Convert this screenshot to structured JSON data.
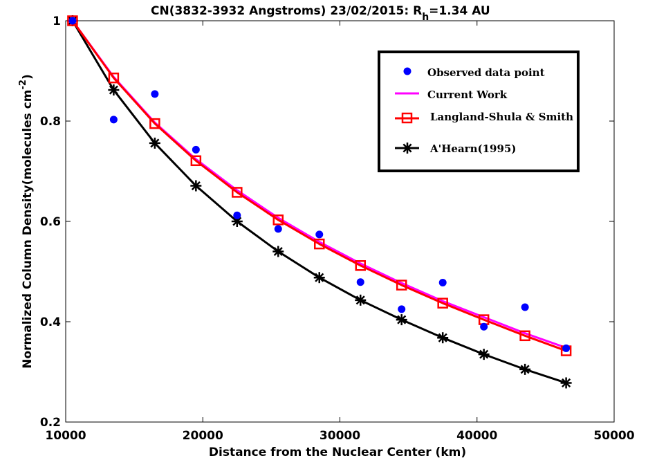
{
  "chart_data": {
    "type": "line",
    "title_main": "CN(3832-3932 Angstroms) 23/02/2015: R",
    "title_sub": "h",
    "title_tail": "=1.34 AU",
    "xlabel": "Distance from the Nuclear Center (km)",
    "ylabel_main": "Normalized Column Density(molecules cm",
    "ylabel_sup": "-2",
    "ylabel_tail": ")",
    "xlim": [
      10000,
      50000
    ],
    "ylim": [
      0.2,
      1.0
    ],
    "xticks": [
      10000,
      20000,
      30000,
      40000,
      50000
    ],
    "yticks": [
      0.2,
      0.4,
      0.6,
      0.8,
      1.0
    ],
    "xtick_labels": [
      "10000",
      "20000",
      "30000",
      "40000",
      "50000"
    ],
    "ytick_labels": [
      "0.2",
      "0.4",
      "0.6",
      "0.8",
      "1"
    ],
    "legend_position": "top-right",
    "series": [
      {
        "name": "Observed data point",
        "style": "marker-circle",
        "color": "#0000ff",
        "x": [
          10500,
          13500,
          16500,
          19500,
          22500,
          25500,
          28500,
          31500,
          34500,
          37500,
          40500,
          43500,
          46500
        ],
        "y": [
          1.0,
          0.803,
          0.854,
          0.743,
          0.612,
          0.585,
          0.574,
          0.479,
          0.425,
          0.478,
          0.39,
          0.429,
          0.347
        ]
      },
      {
        "name": "Current Work",
        "style": "line",
        "color": "#ff00ff",
        "x": [
          10500,
          13500,
          16500,
          19500,
          22500,
          25500,
          28500,
          31500,
          34500,
          37500,
          40500,
          43500,
          46500
        ],
        "y": [
          1.0,
          0.888,
          0.797,
          0.724,
          0.662,
          0.607,
          0.559,
          0.516,
          0.477,
          0.441,
          0.409,
          0.377,
          0.348
        ]
      },
      {
        "name": "Langland-Shula & Smith",
        "style": "line-square",
        "color": "#ff0000",
        "x": [
          10500,
          13500,
          16500,
          19500,
          22500,
          25500,
          28500,
          31500,
          34500,
          37500,
          40500,
          43500,
          46500
        ],
        "y": [
          1.0,
          0.886,
          0.795,
          0.721,
          0.658,
          0.603,
          0.555,
          0.512,
          0.473,
          0.437,
          0.404,
          0.372,
          0.342
        ]
      },
      {
        "name": "A'Hearn(1995)",
        "style": "line-asterisk",
        "color": "#000000",
        "x": [
          10500,
          13500,
          16500,
          19500,
          22500,
          25500,
          28500,
          31500,
          34500,
          37500,
          40500,
          43500,
          46500
        ],
        "y": [
          1.0,
          0.862,
          0.756,
          0.671,
          0.6,
          0.54,
          0.488,
          0.443,
          0.404,
          0.368,
          0.335,
          0.305,
          0.278
        ]
      }
    ]
  }
}
